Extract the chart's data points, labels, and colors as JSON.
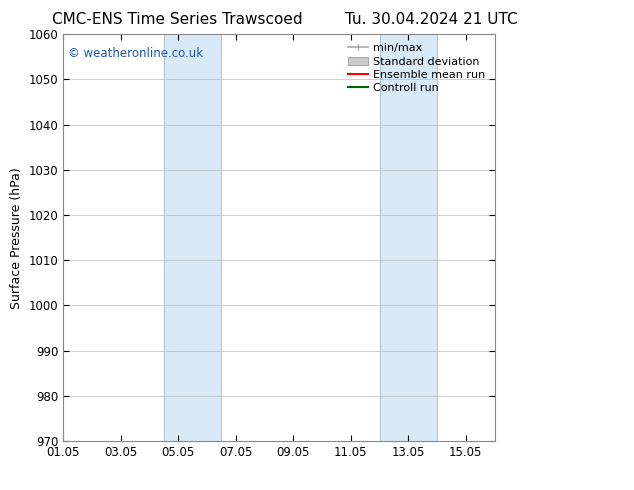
{
  "title_left": "CMC-ENS Time Series Trawscoed",
  "title_right": "Tu. 30.04.2024 21 UTC",
  "ylabel": "Surface Pressure (hPa)",
  "ylim": [
    970,
    1060
  ],
  "yticks": [
    970,
    980,
    990,
    1000,
    1010,
    1020,
    1030,
    1040,
    1050,
    1060
  ],
  "xlim": [
    0.0,
    15.0
  ],
  "xtick_positions": [
    0,
    2,
    4,
    6,
    8,
    10,
    12,
    14
  ],
  "xtick_labels": [
    "01.05",
    "03.05",
    "05.05",
    "07.05",
    "09.05",
    "11.05",
    "13.05",
    "15.05"
  ],
  "shaded_bands": [
    {
      "xmin": 3.5,
      "xmax": 5.5
    },
    {
      "xmin": 11.0,
      "xmax": 13.0
    }
  ],
  "shade_color": "#d8eaf8",
  "watermark_text": "© weatheronline.co.uk",
  "watermark_color": "#2255aa",
  "legend_entries": [
    {
      "label": "min/max",
      "color": "#aaaaaa"
    },
    {
      "label": "Standard deviation",
      "color": "#cccccc"
    },
    {
      "label": "Ensemble mean run",
      "color": "#ff0000"
    },
    {
      "label": "Controll run",
      "color": "#006600"
    }
  ],
  "background_color": "#ffffff",
  "grid_color": "#bbbbbb",
  "font_color": "#000000",
  "title_fontsize": 11,
  "tick_fontsize": 8.5,
  "label_fontsize": 9,
  "legend_fontsize": 8
}
